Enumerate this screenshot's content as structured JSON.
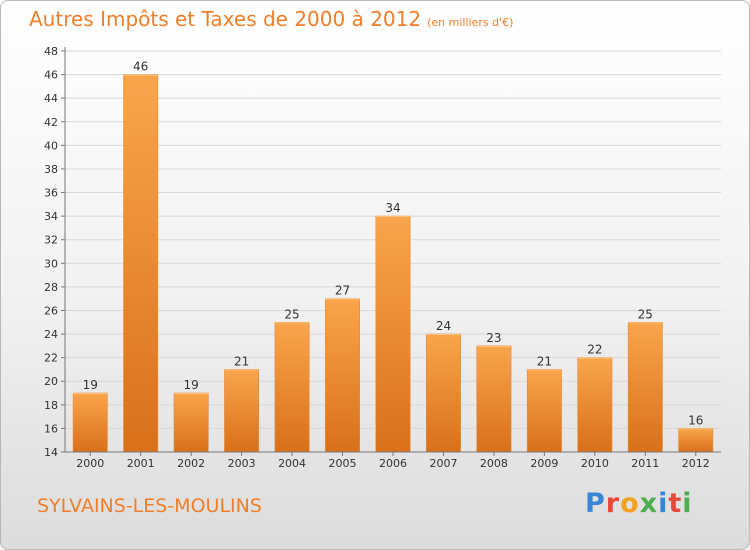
{
  "header": {
    "title": "Autres Impôts et Taxes de 2000 à 2012",
    "unit": "(en milliers d'€)"
  },
  "footer": {
    "place": "SYLVAINS-LES-MOULINS",
    "logo": "Proxiti"
  },
  "colors": {
    "accent": "#f07e2a",
    "bar_light": "#f9a54c",
    "bar_dark": "#d9701a",
    "logo_letters": [
      "#3a86d6",
      "#e8473c",
      "#f3a21f",
      "#4caf50",
      "#3a86d6",
      "#e8473c",
      "#4caf50"
    ]
  },
  "chart_data": {
    "type": "bar",
    "title": "Autres Impôts et Taxes de 2000 à 2012",
    "subtitle": "(en milliers d'€)",
    "xlabel": "",
    "ylabel": "",
    "categories": [
      "2000",
      "2001",
      "2002",
      "2003",
      "2004",
      "2005",
      "2006",
      "2007",
      "2008",
      "2009",
      "2010",
      "2011",
      "2012"
    ],
    "values": [
      19,
      46,
      19,
      21,
      25,
      27,
      34,
      24,
      23,
      21,
      22,
      25,
      16
    ],
    "ylim": [
      14,
      48
    ],
    "yticks": [
      14,
      16,
      18,
      20,
      22,
      24,
      26,
      28,
      30,
      32,
      34,
      36,
      38,
      40,
      42,
      44,
      46,
      48
    ],
    "grid": "horizontal"
  }
}
